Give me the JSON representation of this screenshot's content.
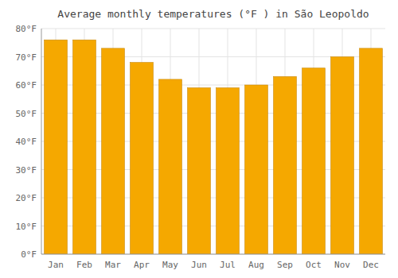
{
  "chart_data": {
    "type": "bar",
    "title": "Average monthly temperatures (°F ) in São Leopoldo",
    "categories": [
      "Jan",
      "Feb",
      "Mar",
      "Apr",
      "May",
      "Jun",
      "Jul",
      "Aug",
      "Sep",
      "Oct",
      "Nov",
      "Dec"
    ],
    "values": [
      76,
      76,
      73,
      68,
      62,
      59,
      59,
      60,
      63,
      66,
      70,
      73
    ],
    "color": "#F5A800",
    "ylim": [
      0,
      80
    ],
    "yticks": [
      {
        "value": 0,
        "label": "0°F"
      },
      {
        "value": 10,
        "label": "10°F"
      },
      {
        "value": 20,
        "label": "20°F"
      },
      {
        "value": 30,
        "label": "30°F"
      },
      {
        "value": 40,
        "label": "40°F"
      },
      {
        "value": 50,
        "label": "50°F"
      },
      {
        "value": 60,
        "label": "60°F"
      },
      {
        "value": 70,
        "label": "70°F"
      },
      {
        "value": 80,
        "label": "80°F"
      }
    ],
    "grid": true
  }
}
